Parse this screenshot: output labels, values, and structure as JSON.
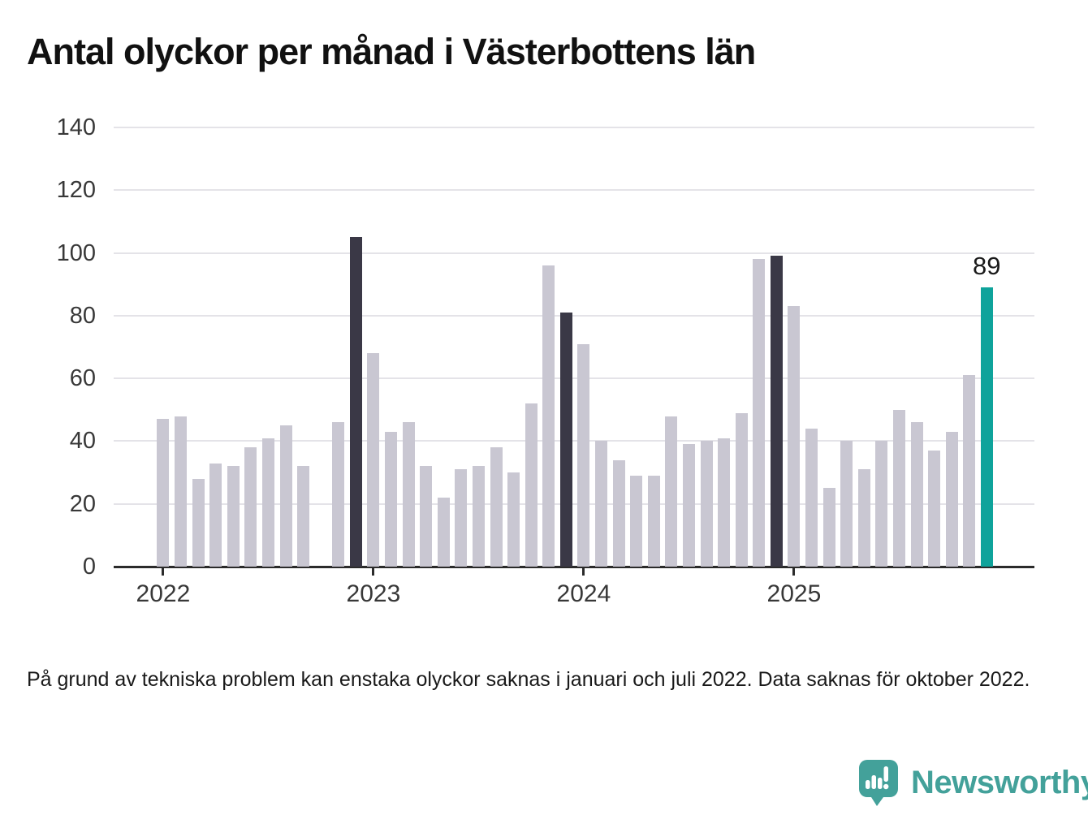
{
  "title": "Antal olyckor per månad i Västerbottens län",
  "footnote": "På grund av tekniska problem kan enstaka olyckor saknas i januari och juli 2022. Data saknas för oktober 2022.",
  "annotation": {
    "text": "89"
  },
  "logo": {
    "text": "Newsworthy"
  },
  "colors": {
    "bar_normal": "#c9c7d2",
    "bar_december": "#3a3846",
    "bar_latest": "#0fa39b",
    "grid": "#e4e3e8",
    "axis": "#2b2b2b",
    "logo_teal": "#43a19a"
  },
  "chart_data": {
    "type": "bar",
    "title": "Antal olyckor per månad i Västerbottens län",
    "xlabel": "",
    "ylabel": "",
    "ylim": [
      0,
      140
    ],
    "grid": true,
    "legend": "none",
    "y_ticks": [
      0,
      20,
      40,
      60,
      80,
      100,
      120,
      140
    ],
    "x_ticks": [
      {
        "label": "2022",
        "month_index": 0
      },
      {
        "label": "2023",
        "month_index": 12
      },
      {
        "label": "2024",
        "month_index": 24
      },
      {
        "label": "2025",
        "month_index": 36
      }
    ],
    "points": [
      {
        "month": "2022-01",
        "value": 47,
        "style": "normal"
      },
      {
        "month": "2022-02",
        "value": 48,
        "style": "normal"
      },
      {
        "month": "2022-03",
        "value": 28,
        "style": "normal"
      },
      {
        "month": "2022-04",
        "value": 33,
        "style": "normal"
      },
      {
        "month": "2022-05",
        "value": 32,
        "style": "normal"
      },
      {
        "month": "2022-06",
        "value": 38,
        "style": "normal"
      },
      {
        "month": "2022-07",
        "value": 41,
        "style": "normal"
      },
      {
        "month": "2022-08",
        "value": 45,
        "style": "normal"
      },
      {
        "month": "2022-09",
        "value": 32,
        "style": "normal"
      },
      {
        "month": "2022-10",
        "value": null,
        "style": "missing"
      },
      {
        "month": "2022-11",
        "value": 46,
        "style": "normal"
      },
      {
        "month": "2022-12",
        "value": 105,
        "style": "december"
      },
      {
        "month": "2023-01",
        "value": 68,
        "style": "normal"
      },
      {
        "month": "2023-02",
        "value": 43,
        "style": "normal"
      },
      {
        "month": "2023-03",
        "value": 46,
        "style": "normal"
      },
      {
        "month": "2023-04",
        "value": 32,
        "style": "normal"
      },
      {
        "month": "2023-05",
        "value": 22,
        "style": "normal"
      },
      {
        "month": "2023-06",
        "value": 31,
        "style": "normal"
      },
      {
        "month": "2023-07",
        "value": 32,
        "style": "normal"
      },
      {
        "month": "2023-08",
        "value": 38,
        "style": "normal"
      },
      {
        "month": "2023-09",
        "value": 30,
        "style": "normal"
      },
      {
        "month": "2023-10",
        "value": 52,
        "style": "normal"
      },
      {
        "month": "2023-11",
        "value": 96,
        "style": "normal"
      },
      {
        "month": "2023-12",
        "value": 81,
        "style": "december"
      },
      {
        "month": "2024-01",
        "value": 71,
        "style": "normal"
      },
      {
        "month": "2024-02",
        "value": 40,
        "style": "normal"
      },
      {
        "month": "2024-03",
        "value": 34,
        "style": "normal"
      },
      {
        "month": "2024-04",
        "value": 29,
        "style": "normal"
      },
      {
        "month": "2024-05",
        "value": 29,
        "style": "normal"
      },
      {
        "month": "2024-06",
        "value": 48,
        "style": "normal"
      },
      {
        "month": "2024-07",
        "value": 39,
        "style": "normal"
      },
      {
        "month": "2024-08",
        "value": 40,
        "style": "normal"
      },
      {
        "month": "2024-09",
        "value": 41,
        "style": "normal"
      },
      {
        "month": "2024-10",
        "value": 49,
        "style": "normal"
      },
      {
        "month": "2024-11",
        "value": 98,
        "style": "normal"
      },
      {
        "month": "2024-12",
        "value": 99,
        "style": "december"
      },
      {
        "month": "2025-01",
        "value": 83,
        "style": "normal"
      },
      {
        "month": "2025-02",
        "value": 44,
        "style": "normal"
      },
      {
        "month": "2025-03",
        "value": 25,
        "style": "normal"
      },
      {
        "month": "2025-04",
        "value": 40,
        "style": "normal"
      },
      {
        "month": "2025-05",
        "value": 31,
        "style": "normal"
      },
      {
        "month": "2025-06",
        "value": 40,
        "style": "normal"
      },
      {
        "month": "2025-07",
        "value": 50,
        "style": "normal"
      },
      {
        "month": "2025-08",
        "value": 46,
        "style": "normal"
      },
      {
        "month": "2025-09",
        "value": 37,
        "style": "normal"
      },
      {
        "month": "2025-10",
        "value": 43,
        "style": "normal"
      },
      {
        "month": "2025-11",
        "value": 61,
        "style": "normal"
      },
      {
        "month": "2025-12",
        "value": 89,
        "style": "latest",
        "label": "89"
      }
    ]
  }
}
